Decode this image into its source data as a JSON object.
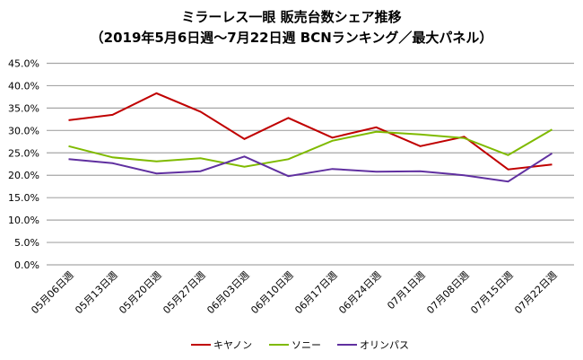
{
  "chart_data": {
    "type": "line",
    "title": "ミラーレス一眼  販売台数シェア推移",
    "subtitle": "（2019年5月6日週～7月22日週  BCNランキング／最大パネル）",
    "xlabel": "",
    "ylabel": "",
    "ylim": [
      0,
      45
    ],
    "yticks": [
      "0.0%",
      "5.0%",
      "10.0%",
      "15.0%",
      "20.0%",
      "25.0%",
      "30.0%",
      "35.0%",
      "40.0%",
      "45.0%"
    ],
    "grid": true,
    "legend_position": "bottom",
    "categories": [
      "05月06日週",
      "05月13日週",
      "05月20日週",
      "05月27日週",
      "06月03日週",
      "06月10日週",
      "06月17日週",
      "06月24日週",
      "07月1日週",
      "07月08日週",
      "07月15日週",
      "07月22日週"
    ],
    "series": [
      {
        "name": "キヤノン",
        "color": "#c00000",
        "values": [
          32.3,
          33.5,
          38.3,
          34.2,
          28.1,
          32.8,
          28.4,
          30.7,
          26.5,
          28.6,
          21.3,
          22.4
        ]
      },
      {
        "name": "ソニー",
        "color": "#7fba00",
        "values": [
          26.5,
          24.0,
          23.1,
          23.8,
          21.9,
          23.6,
          27.7,
          29.7,
          29.1,
          28.3,
          24.5,
          30.2
        ]
      },
      {
        "name": "オリンパス",
        "color": "#6030a0",
        "values": [
          23.6,
          22.7,
          20.4,
          20.9,
          24.2,
          19.8,
          21.4,
          20.8,
          20.9,
          20.0,
          18.6,
          24.9
        ]
      }
    ]
  }
}
